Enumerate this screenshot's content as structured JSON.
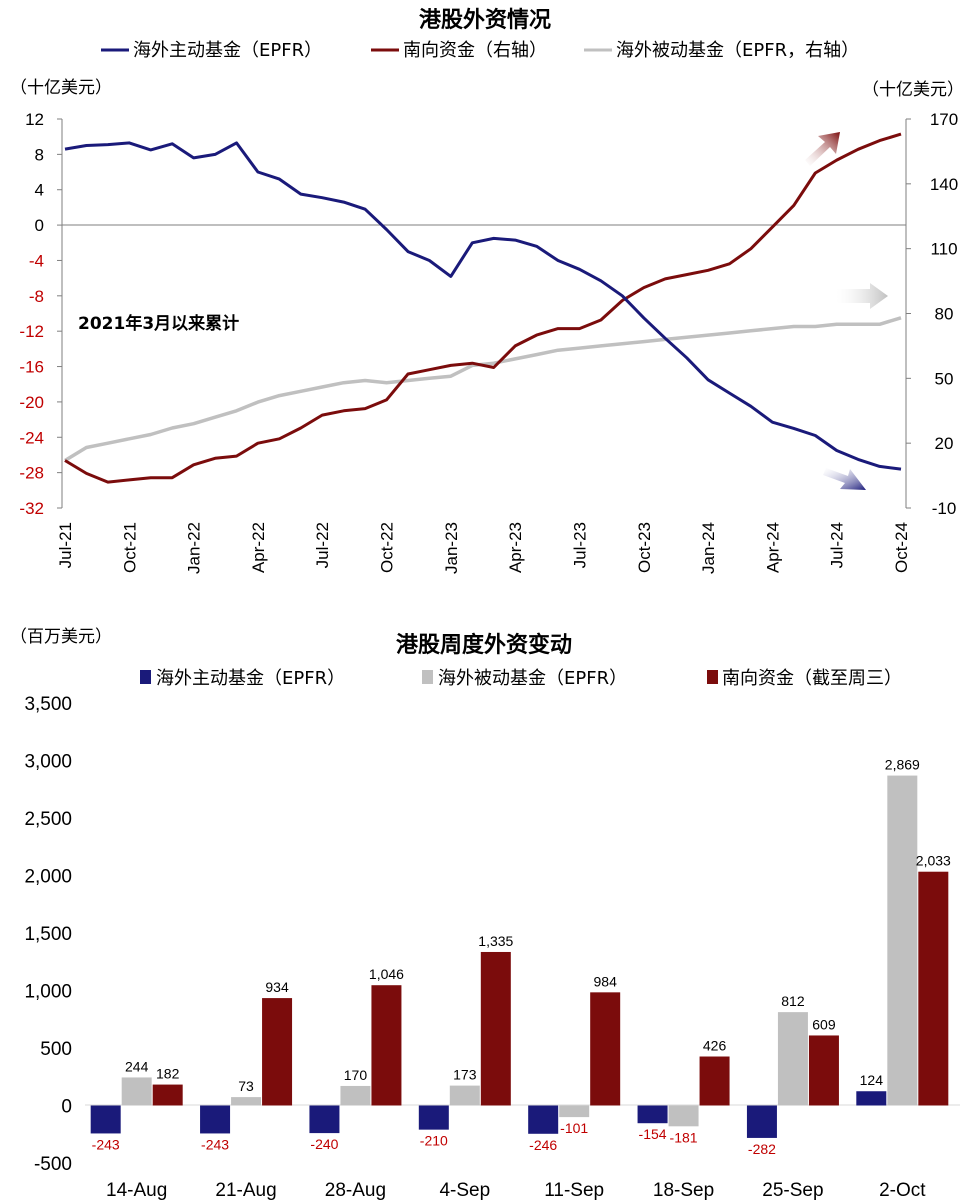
{
  "colors": {
    "navy": "#1a1a7a",
    "maroon": "#7b0c0c",
    "grey": "#c0c0c0",
    "red_text": "#c00000",
    "axis_grey": "#7f7f7f"
  },
  "chart_data": [
    {
      "type": "line",
      "title": "港股外资情况",
      "annotation": "2021年3月以来累计",
      "y_left_unit": "（十亿美元）",
      "y_right_unit": "（十亿美元）",
      "ylim_left": [
        -32,
        12
      ],
      "ylim_right": [
        -10,
        170
      ],
      "y_left_ticks": [
        "12",
        "8",
        "4",
        "0",
        "-4",
        "-8",
        "-12",
        "-16",
        "-20",
        "-24",
        "-28",
        "-32"
      ],
      "y_right_ticks": [
        "170",
        "140",
        "110",
        "80",
        "50",
        "20",
        "-10"
      ],
      "x_ticks": [
        "Jul-21",
        "Oct-21",
        "Jan-22",
        "Apr-22",
        "Jul-22",
        "Oct-22",
        "Jan-23",
        "Apr-23",
        "Jul-23",
        "Oct-23",
        "Jan-24",
        "Apr-24",
        "Jul-24",
        "Oct-24"
      ],
      "x_range": [
        "2021-07",
        "2024-10"
      ],
      "series": [
        {
          "name": "海外主动基金（EPFR）",
          "axis": "left",
          "color": "#1a1a7a",
          "x": [
            "2021-07",
            "2021-08",
            "2021-09",
            "2021-10",
            "2021-11",
            "2021-12",
            "2022-01",
            "2022-02",
            "2022-03",
            "2022-04",
            "2022-05",
            "2022-06",
            "2022-07",
            "2022-08",
            "2022-09",
            "2022-10",
            "2022-11",
            "2022-12",
            "2023-01",
            "2023-02",
            "2023-03",
            "2023-04",
            "2023-05",
            "2023-06",
            "2023-07",
            "2023-08",
            "2023-09",
            "2023-10",
            "2023-11",
            "2023-12",
            "2024-01",
            "2024-02",
            "2024-03",
            "2024-04",
            "2024-05",
            "2024-06",
            "2024-07",
            "2024-08",
            "2024-09",
            "2024-10"
          ],
          "y": [
            8.6,
            9.0,
            9.1,
            9.3,
            8.5,
            9.2,
            7.6,
            8.0,
            9.3,
            6.0,
            5.2,
            3.5,
            3.1,
            2.6,
            1.8,
            -0.5,
            -3.0,
            -4.0,
            -5.8,
            -2.0,
            -1.5,
            -1.7,
            -2.4,
            -4.0,
            -5.0,
            -6.3,
            -8.0,
            -10.5,
            -12.8,
            -15.0,
            -17.5,
            -19.0,
            -20.5,
            -22.3,
            -23.0,
            -23.8,
            -25.5,
            -26.5,
            -27.3,
            -27.6
          ]
        },
        {
          "name": "南向资金（右轴）",
          "axis": "right",
          "color": "#7b0c0c",
          "x": [
            "2021-07",
            "2021-08",
            "2021-09",
            "2021-10",
            "2021-11",
            "2021-12",
            "2022-01",
            "2022-02",
            "2022-03",
            "2022-04",
            "2022-05",
            "2022-06",
            "2022-07",
            "2022-08",
            "2022-09",
            "2022-10",
            "2022-11",
            "2022-12",
            "2023-01",
            "2023-02",
            "2023-03",
            "2023-04",
            "2023-05",
            "2023-06",
            "2023-07",
            "2023-08",
            "2023-09",
            "2023-10",
            "2023-11",
            "2023-12",
            "2024-01",
            "2024-02",
            "2024-03",
            "2024-04",
            "2024-05",
            "2024-06",
            "2024-07",
            "2024-08",
            "2024-09",
            "2024-10"
          ],
          "y": [
            12,
            6,
            2,
            3,
            4,
            4,
            10,
            13,
            14,
            20,
            22,
            27,
            33,
            35,
            36,
            40,
            52,
            54,
            56,
            57,
            55,
            65,
            70,
            73,
            73,
            77,
            86,
            92,
            96,
            98,
            100,
            103,
            110,
            120,
            130,
            145,
            151,
            156,
            160,
            163
          ]
        },
        {
          "name": "海外被动基金（EPFR，右轴）",
          "axis": "right",
          "color": "#c0c0c0",
          "x": [
            "2021-07",
            "2021-08",
            "2021-09",
            "2021-10",
            "2021-11",
            "2021-12",
            "2022-01",
            "2022-02",
            "2022-03",
            "2022-04",
            "2022-05",
            "2022-06",
            "2022-07",
            "2022-08",
            "2022-09",
            "2022-10",
            "2022-11",
            "2022-12",
            "2023-01",
            "2023-02",
            "2023-03",
            "2023-04",
            "2023-05",
            "2023-06",
            "2023-07",
            "2023-08",
            "2023-09",
            "2023-10",
            "2023-11",
            "2023-12",
            "2024-01",
            "2024-02",
            "2024-03",
            "2024-04",
            "2024-05",
            "2024-06",
            "2024-07",
            "2024-08",
            "2024-09",
            "2024-10"
          ],
          "y": [
            12,
            18,
            20,
            22,
            24,
            27,
            29,
            32,
            35,
            39,
            42,
            44,
            46,
            48,
            49,
            48,
            49,
            50,
            51,
            56,
            57,
            59,
            61,
            63,
            64,
            65,
            66,
            67,
            68,
            69,
            70,
            71,
            72,
            73,
            74,
            74,
            75,
            75,
            75,
            78
          ]
        }
      ]
    },
    {
      "type": "bar",
      "title": "港股周度外资变动",
      "y_unit": "（百万美元）",
      "ylim": [
        -500,
        3500
      ],
      "y_ticks": [
        "3,500",
        "3,000",
        "2,500",
        "2,000",
        "1,500",
        "1,000",
        "500",
        "0",
        "-500"
      ],
      "categories": [
        "14-Aug",
        "21-Aug",
        "28-Aug",
        "4-Sep",
        "11-Sep",
        "18-Sep",
        "25-Sep",
        "2-Oct"
      ],
      "series": [
        {
          "name": "海外主动基金（EPFR）",
          "color": "#1a1a7a",
          "values": [
            -243,
            -243,
            -240,
            -210,
            -246,
            -154,
            -282,
            124
          ],
          "labels": [
            "-243",
            "-243",
            "-240",
            "-210",
            "-246",
            "-154",
            "-282",
            "124"
          ]
        },
        {
          "name": "海外被动基金（EPFR）",
          "color": "#c0c0c0",
          "values": [
            244,
            73,
            170,
            173,
            -101,
            -181,
            812,
            2869
          ],
          "labels": [
            "244",
            "73",
            "170",
            "173",
            "-101",
            "-181",
            "812",
            "2,869"
          ]
        },
        {
          "name": "南向资金（截至周三）",
          "color": "#7b0c0c",
          "values": [
            182,
            934,
            1046,
            1335,
            984,
            426,
            609,
            2033
          ],
          "labels": [
            "182",
            "934",
            "1,046",
            "1,335",
            "984",
            "426",
            "609",
            "2,033"
          ]
        }
      ]
    }
  ]
}
